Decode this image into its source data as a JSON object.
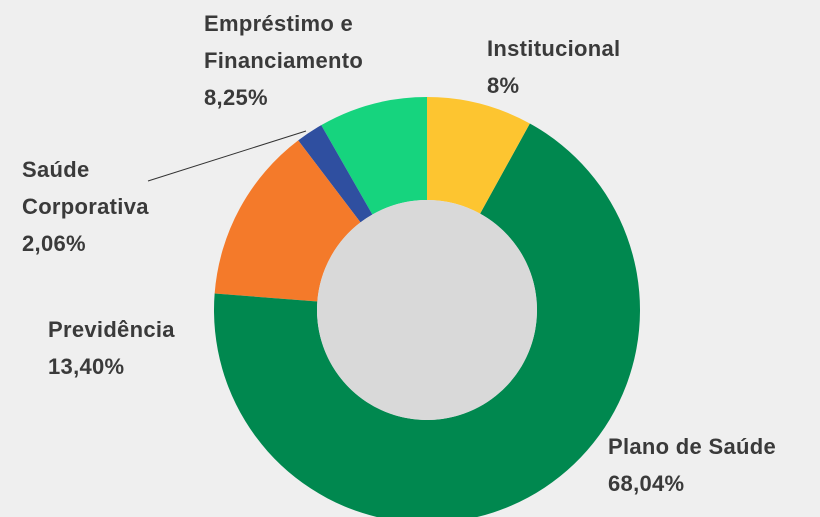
{
  "chart_data": {
    "type": "donut",
    "categories": [
      "Institucional",
      "Plano de Saúde",
      "Previdência",
      "Saúde Corporativa",
      "Empréstimo e Financiamento"
    ],
    "values": [
      8,
      68.04,
      13.4,
      2.06,
      8.25
    ],
    "value_labels": [
      "8%",
      "68,04%",
      "13,40%",
      "2,06%",
      "8,25%"
    ],
    "colors": [
      "#fdc530",
      "#00884f",
      "#f47a2a",
      "#2f4fa0",
      "#16d47e"
    ]
  }
}
